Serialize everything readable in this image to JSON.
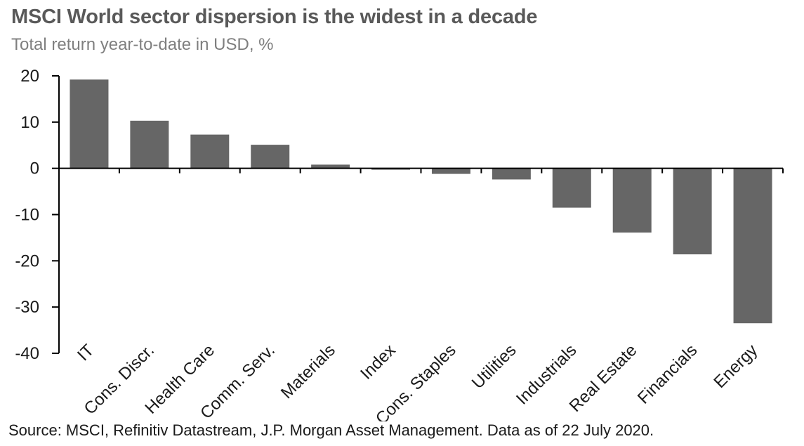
{
  "chart_data": {
    "type": "bar",
    "title": "MSCI World sector dispersion is the widest in a decade",
    "subtitle": "Total return year-to-date in USD, %",
    "categories": [
      "IT",
      "Cons. Discr.",
      "Health Care",
      "Comm. Serv.",
      "Materials",
      "Index",
      "Cons. Staples",
      "Utilities",
      "Industrials",
      "Real Estate",
      "Financials",
      "Energy"
    ],
    "values": [
      19.2,
      10.3,
      7.3,
      5.1,
      0.8,
      -0.3,
      -1.2,
      -2.4,
      -8.5,
      -13.9,
      -18.6,
      -33.5
    ],
    "ylim": [
      -40,
      20
    ],
    "yticks": [
      20,
      10,
      0,
      -10,
      -20,
      -30,
      -40
    ],
    "xlabel": "",
    "ylabel": "",
    "grid": false,
    "legend": "none",
    "bar_color": "#666666"
  },
  "source": "Source: MSCI, Refinitiv Datastream, J.P. Morgan Asset Management. Data as of 22 July 2020."
}
